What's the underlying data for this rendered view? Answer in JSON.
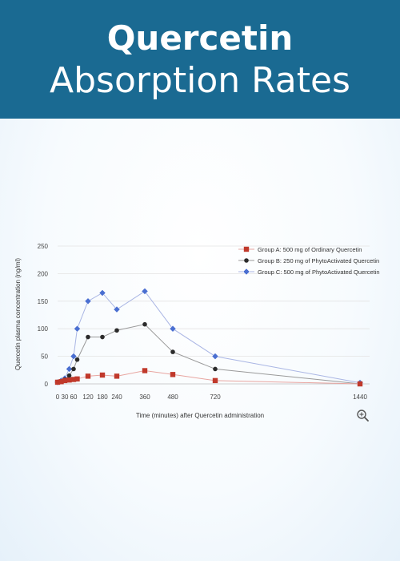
{
  "header": {
    "title_line1": "Quercetin",
    "title_line2": "Absorption Rates"
  },
  "colors": {
    "banner": "#1a6a92",
    "series_a": "#c0392b",
    "series_b": "#2b2b2b",
    "series_c": "#4a6fd1"
  },
  "zoom_icon": "magnifier-plus-icon",
  "chart_data": {
    "type": "line",
    "xlabel": "Time (minutes) after Quercetin administration",
    "ylabel": "Quercetin plasma concentration (ng/ml)",
    "xticks": [
      0,
      30,
      60,
      120,
      180,
      240,
      360,
      480,
      720,
      1440
    ],
    "yticks": [
      0,
      50,
      100,
      150,
      200,
      250
    ],
    "ylim": [
      0,
      250
    ],
    "xlim": [
      0,
      1440
    ],
    "legend_position": "top-right",
    "grid": "horizontal",
    "series": [
      {
        "name": "Group A: 500 mg of Ordinary Quercetin",
        "marker": "square",
        "color": "#c0392b",
        "x": [
          0,
          15,
          30,
          45,
          60,
          75,
          120,
          180,
          240,
          360,
          480,
          720,
          1440
        ],
        "y": [
          3,
          4,
          6,
          7,
          8,
          9,
          14,
          16,
          14,
          24,
          17,
          6,
          0
        ]
      },
      {
        "name": "Group B: 250 mg of PhytoActivated Quercetin",
        "marker": "circle",
        "color": "#2b2b2b",
        "x": [
          0,
          15,
          30,
          45,
          60,
          75,
          120,
          180,
          240,
          360,
          480,
          720,
          1440
        ],
        "y": [
          3,
          5,
          8,
          15,
          27,
          44,
          85,
          85,
          97,
          108,
          58,
          27,
          0
        ]
      },
      {
        "name": "Group C: 500 mg of PhytoActivated Quercetin",
        "marker": "diamond",
        "color": "#4a6fd1",
        "x": [
          0,
          15,
          30,
          45,
          60,
          75,
          120,
          180,
          240,
          360,
          480,
          720,
          1440
        ],
        "y": [
          3,
          6,
          10,
          27,
          50,
          100,
          150,
          165,
          135,
          168,
          100,
          50,
          2
        ]
      }
    ]
  }
}
